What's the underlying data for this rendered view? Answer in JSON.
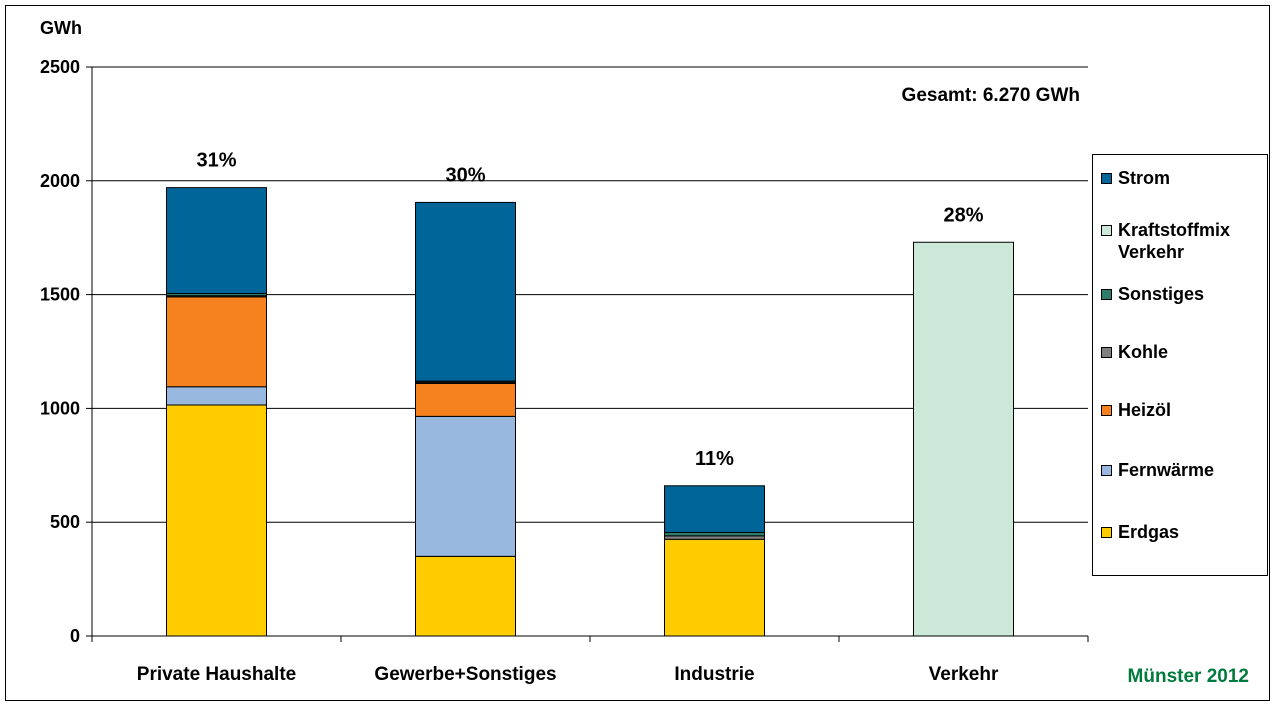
{
  "chart_data": {
    "type": "bar",
    "stacked": true,
    "ylabel": "GWh",
    "ylim": [
      0,
      2500
    ],
    "yticks": [
      0,
      500,
      1000,
      1500,
      2000,
      2500
    ],
    "grid": true,
    "legend_position": "right",
    "categories": [
      "Private Haushalte",
      "Gewerbe+Sonstiges",
      "Industrie",
      "Verkehr"
    ],
    "series": [
      {
        "name": "Erdgas",
        "color": "#FFCC00",
        "values": [
          1015,
          350,
          425,
          0
        ]
      },
      {
        "name": "Fernwärme",
        "color": "#99B8E0",
        "values": [
          80,
          615,
          0,
          0
        ]
      },
      {
        "name": "Heizöl",
        "color": "#F5821F",
        "values": [
          395,
          145,
          0,
          0
        ]
      },
      {
        "name": "Kohle",
        "color": "#808080",
        "values": [
          5,
          5,
          15,
          0
        ]
      },
      {
        "name": "Sonstiges",
        "color": "#2E7D6B",
        "values": [
          10,
          5,
          15,
          0
        ]
      },
      {
        "name": "Kraftstoffmix Verkehr",
        "color": "#CCE8D8",
        "values": [
          0,
          0,
          0,
          1730
        ]
      },
      {
        "name": "Strom",
        "color": "#006699",
        "values": [
          465,
          785,
          205,
          0
        ]
      }
    ],
    "legend_order": [
      "Strom",
      "Kraftstoffmix Verkehr",
      "Sonstiges",
      "Kohle",
      "Heizöl",
      "Fernwärme",
      "Erdgas"
    ],
    "bar_labels": [
      "31%",
      "30%",
      "11%",
      "28%"
    ],
    "annotation_total": "Gesamt: 6.270 GWh",
    "annotation_corner": "Münster 2012",
    "annotation_corner_color": "#007A3D"
  }
}
